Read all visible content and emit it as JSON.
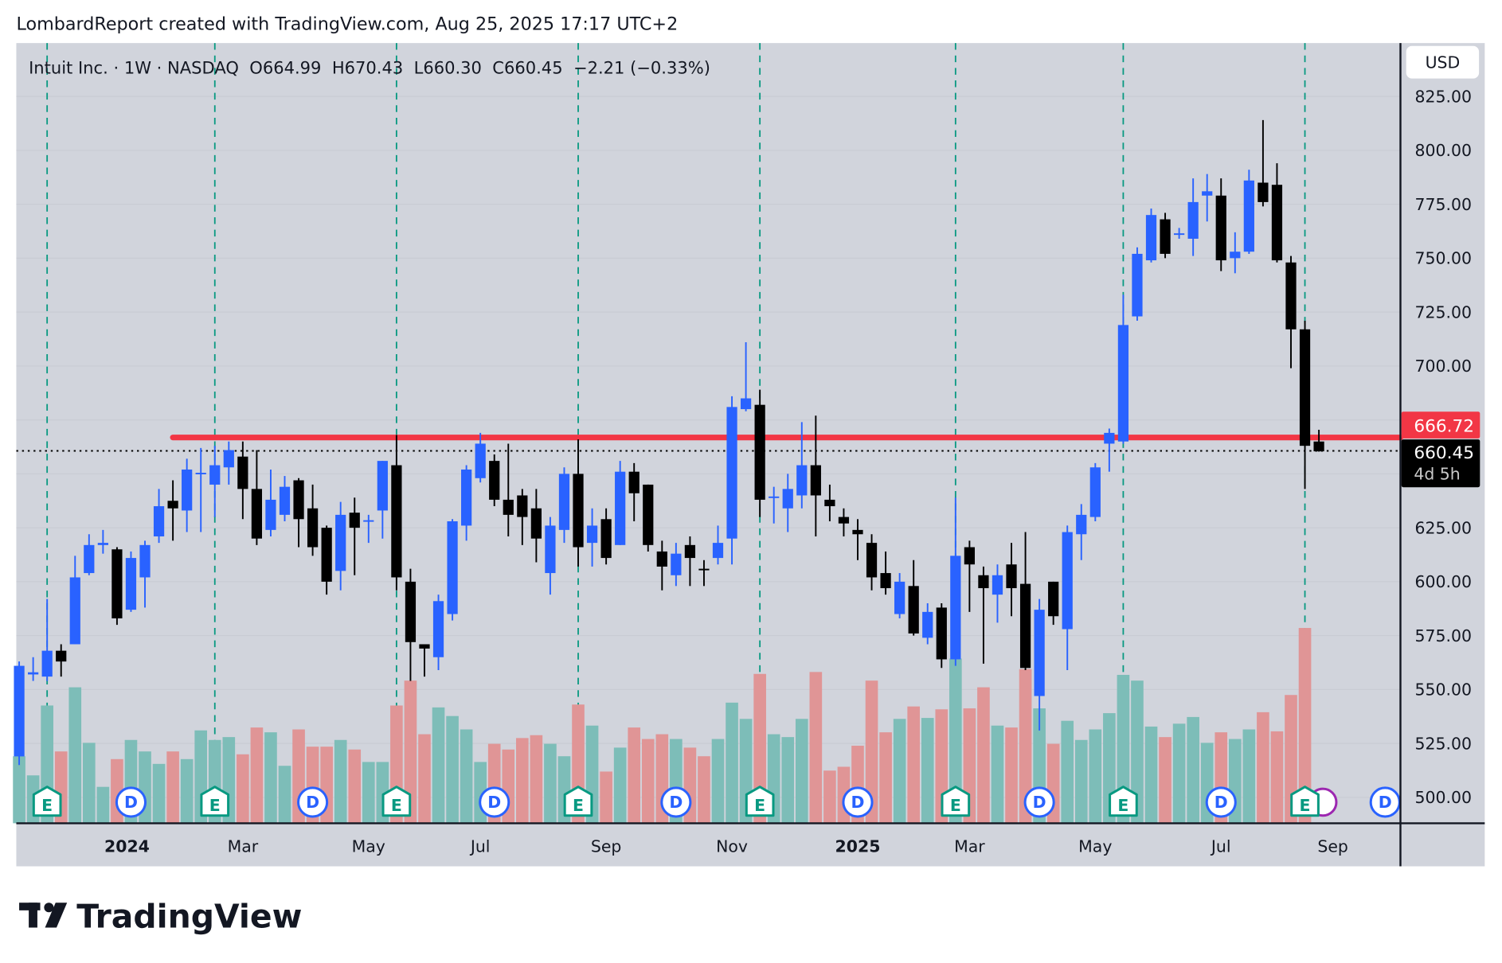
{
  "attribution": "LombardReport created with TradingView.com, Aug 25, 2025 17:17 UTC+2",
  "legend": {
    "symbol": "Intuit Inc. · 1W · NASDAQ",
    "open": "O664.99",
    "high": "H670.43",
    "low": "L660.30",
    "close": "C660.45",
    "change": "−2.21 (−0.33%)"
  },
  "currency_button": "USD",
  "price_tags": {
    "level": "666.72",
    "last": "660.45",
    "countdown": "4d 5h"
  },
  "brand": "TradingView",
  "colors": {
    "up": "#2962ff",
    "down": "#000000",
    "volume_up": "#7dbdb8",
    "volume_down": "#e09596",
    "level_line": "#f23645",
    "earnings": "#089981",
    "dividends": "#2962ff",
    "split": "#9c27b0",
    "background": "#d1d4dc"
  },
  "chart_data": {
    "type": "candlestick",
    "interval": "1W",
    "ylim": [
      490,
      830
    ],
    "yticks": [
      "825.00",
      "800.00",
      "775.00",
      "750.00",
      "725.00",
      "700.00",
      "625.00",
      "600.00",
      "575.00",
      "550.00",
      "525.00",
      "500.00"
    ],
    "xticks": [
      {
        "label": "2024",
        "date": "2024-01-06",
        "bold": true
      },
      {
        "label": "Mar",
        "date": "2024-03-04"
      },
      {
        "label": "May",
        "date": "2024-05-06"
      },
      {
        "label": "Jul",
        "date": "2024-07-01"
      },
      {
        "label": "Sep",
        "date": "2024-09-02"
      },
      {
        "label": "Nov",
        "date": "2024-11-04"
      },
      {
        "label": "2025",
        "date": "2025-01-06",
        "bold": true
      },
      {
        "label": "Mar",
        "date": "2025-03-03"
      },
      {
        "label": "May",
        "date": "2025-05-05"
      },
      {
        "label": "Jul",
        "date": "2025-07-07"
      },
      {
        "label": "Sep",
        "date": "2025-09-01"
      }
    ],
    "horizontal_level": {
      "price": 666.72,
      "from": "2024-01-29"
    },
    "last_price": 660.45,
    "columns": [
      "week",
      "open",
      "high",
      "low",
      "close",
      "volume_relative"
    ],
    "candles": [
      [
        "2023-11-13",
        519,
        563,
        515,
        561,
        70
      ],
      [
        "2023-11-20",
        557,
        565,
        554,
        558,
        50
      ],
      [
        "2023-11-27",
        556,
        592,
        554,
        568,
        123
      ],
      [
        "2023-12-04",
        568,
        571,
        556,
        563,
        75
      ],
      [
        "2023-12-11",
        571,
        612,
        571,
        602,
        142
      ],
      [
        "2023-12-18",
        604,
        622,
        603,
        617,
        84
      ],
      [
        "2023-12-25",
        617,
        624,
        613,
        618,
        38
      ],
      [
        "2024-01-01",
        615,
        616,
        580,
        583,
        67
      ],
      [
        "2024-01-08",
        587,
        614,
        586,
        611,
        87
      ],
      [
        "2024-01-15",
        602,
        619,
        588,
        617,
        75
      ],
      [
        "2024-01-22",
        621,
        643,
        618,
        635,
        62
      ],
      [
        "2024-01-29",
        637.5,
        647,
        619,
        634,
        75
      ],
      [
        "2024-02-05",
        633,
        657,
        623,
        652,
        67
      ],
      [
        "2024-02-12",
        650,
        662,
        623,
        650.5,
        97
      ],
      [
        "2024-02-19",
        645,
        663,
        630,
        654,
        87
      ],
      [
        "2024-02-26",
        653,
        665,
        645,
        661,
        90
      ],
      [
        "2024-03-04",
        658,
        665,
        629,
        643,
        72
      ],
      [
        "2024-03-11",
        643,
        661,
        617,
        620,
        100
      ],
      [
        "2024-03-18",
        624,
        652,
        621,
        638,
        95
      ],
      [
        "2024-03-25",
        631,
        649,
        628,
        644,
        60
      ],
      [
        "2024-04-01",
        647,
        648,
        616,
        629,
        98
      ],
      [
        "2024-04-08",
        634,
        645,
        612,
        616,
        80
      ],
      [
        "2024-04-15",
        625,
        626,
        594,
        600,
        80
      ],
      [
        "2024-04-22",
        605,
        637,
        596,
        631,
        87
      ],
      [
        "2024-04-29",
        632,
        639,
        603,
        625,
        77
      ],
      [
        "2024-05-06",
        628,
        631,
        618,
        628.5,
        64
      ],
      [
        "2024-05-13",
        633,
        656,
        620,
        656,
        64
      ],
      [
        "2024-05-20",
        654,
        668,
        596,
        602,
        123
      ],
      [
        "2024-05-27",
        600,
        606,
        554,
        572,
        149
      ],
      [
        "2024-06-03",
        571,
        571,
        556,
        569,
        93
      ],
      [
        "2024-06-10",
        565,
        594,
        559,
        591,
        121
      ],
      [
        "2024-06-17",
        585,
        629,
        582,
        628,
        112
      ],
      [
        "2024-06-24",
        626,
        654,
        619,
        652,
        98
      ],
      [
        "2024-07-01",
        648,
        669,
        646,
        664,
        64
      ],
      [
        "2024-07-08",
        656,
        659,
        635,
        638,
        83
      ],
      [
        "2024-07-15",
        638,
        664,
        621,
        631,
        77
      ],
      [
        "2024-07-22",
        640,
        643,
        617,
        630,
        89
      ],
      [
        "2024-07-29",
        634,
        643,
        609,
        620,
        92
      ],
      [
        "2024-08-05",
        604,
        630,
        594,
        626,
        83
      ],
      [
        "2024-08-12",
        624,
        653,
        618,
        650,
        70
      ],
      [
        "2024-08-19",
        650,
        666,
        607,
        616,
        124
      ],
      [
        "2024-08-26",
        618,
        634,
        607,
        626,
        102
      ],
      [
        "2024-09-02",
        629,
        634,
        608,
        611,
        54
      ],
      [
        "2024-09-09",
        617,
        656,
        617,
        651,
        79
      ],
      [
        "2024-09-16",
        651,
        655,
        628,
        641,
        100
      ],
      [
        "2024-09-23",
        645,
        645,
        614,
        617,
        88
      ],
      [
        "2024-09-30",
        614,
        619,
        596,
        607,
        93
      ],
      [
        "2024-10-07",
        603,
        618,
        598,
        613,
        88
      ],
      [
        "2024-10-14",
        617,
        621,
        598,
        611,
        79
      ],
      [
        "2024-10-21",
        606,
        610,
        598,
        605.5,
        70
      ],
      [
        "2024-10-28",
        611,
        626,
        608,
        618,
        88
      ],
      [
        "2024-11-04",
        620,
        686,
        608,
        681,
        126
      ],
      [
        "2024-11-11",
        680,
        711,
        679,
        685,
        109
      ],
      [
        "2024-11-18",
        682,
        689,
        630,
        638,
        156
      ],
      [
        "2024-11-25",
        639,
        644,
        627,
        639.5,
        93
      ],
      [
        "2024-12-02",
        634,
        650,
        623,
        643,
        90
      ],
      [
        "2024-12-09",
        640,
        674,
        634,
        654,
        109
      ],
      [
        "2024-12-16",
        654,
        677,
        621,
        640,
        158
      ],
      [
        "2024-12-23",
        638,
        645,
        628,
        635,
        55
      ],
      [
        "2024-12-30",
        630,
        634,
        621,
        627,
        59
      ],
      [
        "2025-01-06",
        624,
        629,
        610,
        622,
        81
      ],
      [
        "2025-01-13",
        618,
        622,
        596,
        602,
        149
      ],
      [
        "2025-01-20",
        604,
        614,
        594,
        597,
        95
      ],
      [
        "2025-01-27",
        585,
        604,
        583,
        600,
        109
      ],
      [
        "2025-02-03",
        598,
        610,
        575,
        576,
        122
      ],
      [
        "2025-02-10",
        574,
        590,
        571,
        586,
        110
      ],
      [
        "2025-02-17",
        588,
        590,
        560,
        564,
        119
      ],
      [
        "2025-02-24",
        564,
        639,
        561,
        612,
        172
      ],
      [
        "2025-03-03",
        616,
        619,
        586,
        608,
        120
      ],
      [
        "2025-03-10",
        603,
        607,
        562,
        597,
        142
      ],
      [
        "2025-03-17",
        594,
        608,
        581,
        603,
        102
      ],
      [
        "2025-03-24",
        608,
        618,
        584,
        597,
        100
      ],
      [
        "2025-03-31",
        599,
        623,
        559,
        560,
        161
      ],
      [
        "2025-04-07",
        547,
        592,
        531,
        587,
        120
      ],
      [
        "2025-04-14",
        600,
        600,
        580,
        584,
        83
      ],
      [
        "2025-04-21",
        578,
        626,
        559,
        623,
        107
      ],
      [
        "2025-04-28",
        622,
        636,
        610,
        631,
        87
      ],
      [
        "2025-05-05",
        630,
        655,
        628,
        653,
        98
      ],
      [
        "2025-05-12",
        664,
        671,
        651,
        669,
        115
      ],
      [
        "2025-05-19",
        665,
        733,
        664,
        719,
        155
      ],
      [
        "2025-05-26",
        723,
        755,
        721,
        752,
        149
      ],
      [
        "2025-06-02",
        749,
        773,
        748,
        770,
        101
      ],
      [
        "2025-06-09",
        768,
        771,
        750,
        752,
        90
      ],
      [
        "2025-06-16",
        761,
        764,
        759,
        761.5,
        104
      ],
      [
        "2025-06-23",
        759,
        787,
        751,
        776,
        111
      ],
      [
        "2025-06-30",
        779,
        789,
        767,
        781,
        84
      ],
      [
        "2025-07-07",
        779,
        787,
        744,
        749,
        95
      ],
      [
        "2025-07-14",
        750,
        762,
        743,
        753,
        88
      ],
      [
        "2025-07-21",
        753,
        791,
        752,
        786,
        98
      ],
      [
        "2025-07-28",
        785,
        814,
        774,
        776,
        116
      ],
      [
        "2025-08-04",
        784,
        794,
        748,
        749,
        96
      ],
      [
        "2025-08-11",
        748,
        751,
        699,
        717,
        134
      ],
      [
        "2025-08-18",
        717,
        721,
        643,
        663,
        204
      ],
      [
        "2025-08-25",
        664.99,
        670.43,
        660.3,
        660.45,
        0
      ]
    ],
    "events": [
      {
        "type": "earnings",
        "label": "E",
        "date": "2023-11-27"
      },
      {
        "type": "dividend",
        "label": "D",
        "date": "2024-01-08"
      },
      {
        "type": "earnings",
        "label": "E",
        "date": "2024-02-19"
      },
      {
        "type": "dividend",
        "label": "D",
        "date": "2024-04-08"
      },
      {
        "type": "earnings",
        "label": "E",
        "date": "2024-05-20"
      },
      {
        "type": "dividend",
        "label": "D",
        "date": "2024-07-08"
      },
      {
        "type": "earnings",
        "label": "E",
        "date": "2024-08-19"
      },
      {
        "type": "dividend",
        "label": "D",
        "date": "2024-10-07"
      },
      {
        "type": "earnings",
        "label": "E",
        "date": "2024-11-18"
      },
      {
        "type": "dividend",
        "label": "D",
        "date": "2025-01-06"
      },
      {
        "type": "earnings",
        "label": "E",
        "date": "2025-02-24"
      },
      {
        "type": "dividend",
        "label": "D",
        "date": "2025-04-07"
      },
      {
        "type": "earnings",
        "label": "E",
        "date": "2025-05-19"
      },
      {
        "type": "dividend",
        "label": "D",
        "date": "2025-07-07"
      },
      {
        "type": "split",
        "label": "",
        "date": "2025-08-27"
      },
      {
        "type": "earnings",
        "label": "E",
        "date": "2025-08-18"
      },
      {
        "type": "dividend",
        "label": "D",
        "date": "2025-10-13"
      }
    ]
  }
}
